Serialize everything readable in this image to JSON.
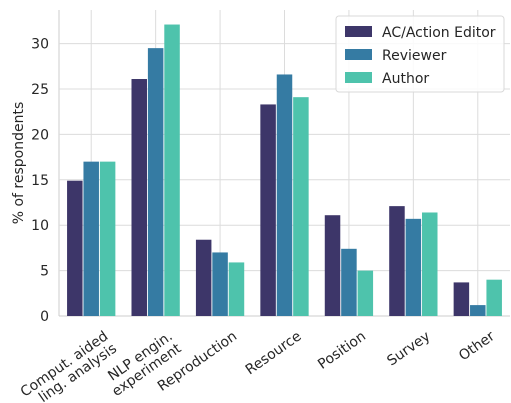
{
  "chart_data": {
    "type": "bar",
    "categories": [
      [
        "Comput. aided",
        "ling. analysis"
      ],
      [
        "NLP engin.",
        "experiment"
      ],
      [
        "Reproduction"
      ],
      [
        "Resource"
      ],
      [
        "Position"
      ],
      [
        "Survey"
      ],
      [
        "Other"
      ]
    ],
    "series": [
      {
        "name": "AC/Action Editor",
        "color": "#3d3669",
        "values": [
          14.9,
          26.1,
          8.4,
          23.3,
          11.1,
          12.1,
          3.7
        ]
      },
      {
        "name": "Reviewer",
        "color": "#357ba3",
        "values": [
          17.0,
          29.5,
          7.0,
          26.6,
          7.4,
          10.7,
          1.2
        ]
      },
      {
        "name": "Author",
        "color": "#4ec3ac",
        "values": [
          17.0,
          32.1,
          5.9,
          24.1,
          5.0,
          11.4,
          4.0
        ]
      }
    ],
    "ylabel": "% of respondents",
    "xlabel": "",
    "ylim": [
      0,
      33.7
    ],
    "yticks": [
      0,
      5,
      10,
      15,
      20,
      25,
      30
    ],
    "grid": true,
    "legend": "top-right"
  }
}
